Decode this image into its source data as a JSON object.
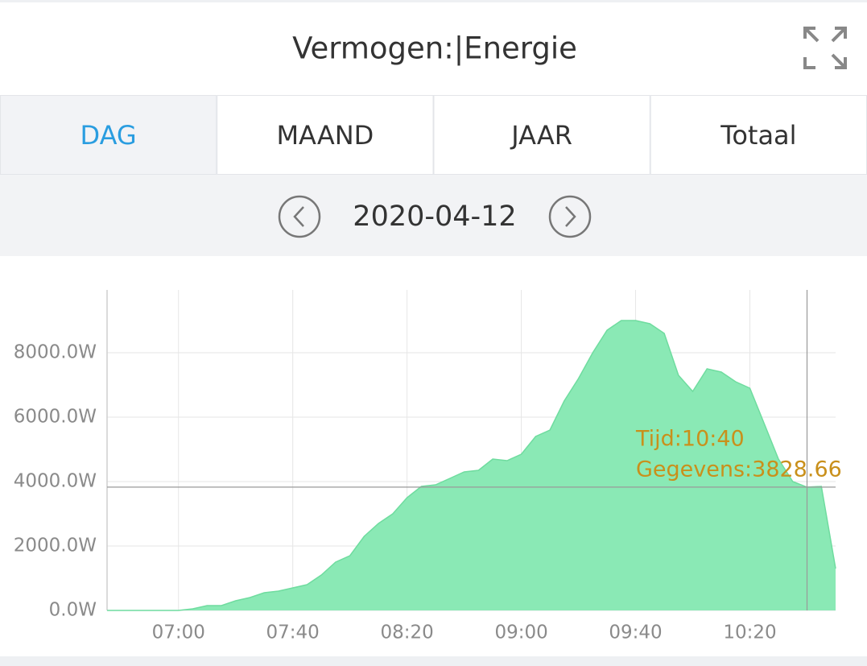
{
  "header": {
    "title": "Vermogen:|Energie"
  },
  "tabs": [
    "DAG",
    "MAAND",
    "JAAR",
    "Totaal"
  ],
  "active_tab": 0,
  "date": "2020-04-12",
  "chart_data": {
    "type": "area",
    "x": [
      "06:35",
      "06:40",
      "06:45",
      "06:50",
      "06:55",
      "07:00",
      "07:05",
      "07:10",
      "07:15",
      "07:20",
      "07:25",
      "07:30",
      "07:35",
      "07:40",
      "07:45",
      "07:50",
      "07:55",
      "08:00",
      "08:05",
      "08:10",
      "08:15",
      "08:20",
      "08:25",
      "08:30",
      "08:35",
      "08:40",
      "08:45",
      "08:50",
      "08:55",
      "09:00",
      "09:05",
      "09:10",
      "09:15",
      "09:20",
      "09:25",
      "09:30",
      "09:35",
      "09:40",
      "09:45",
      "09:50",
      "09:55",
      "10:00",
      "10:05",
      "10:10",
      "10:15",
      "10:20",
      "10:25",
      "10:30",
      "10:35",
      "10:40",
      "10:45",
      "10:50"
    ],
    "values": [
      0,
      0,
      0,
      0,
      0,
      0,
      50,
      150,
      150,
      300,
      400,
      550,
      600,
      700,
      800,
      1100,
      1500,
      1700,
      2300,
      2700,
      3000,
      3500,
      3850,
      3900,
      4100,
      4300,
      4350,
      4700,
      4650,
      4850,
      5400,
      5600,
      6500,
      7200,
      8000,
      8700,
      9000,
      9000,
      8900,
      8600,
      7300,
      6800,
      7500,
      7400,
      7100,
      6900,
      5800,
      4700,
      4000,
      3828.66,
      3850,
      1300
    ],
    "color": "#8ae9b5",
    "line_color": "#6fdc9f",
    "xlim": [
      "06:35",
      "10:50"
    ],
    "xticks": [
      "07:00",
      "07:40",
      "08:20",
      "09:00",
      "09:40",
      "10:20"
    ],
    "ylim": [
      0,
      9950
    ],
    "yticks": [
      {
        "value": 0,
        "label": "0.0W"
      },
      {
        "value": 2000,
        "label": "2000.0W"
      },
      {
        "value": 4000,
        "label": "4000.0W"
      },
      {
        "value": 6000,
        "label": "6000.0W"
      },
      {
        "value": 8000,
        "label": "8000.0W"
      }
    ],
    "grid": true,
    "tooltip": {
      "x": "10:40",
      "value": 3828.66,
      "lines": [
        "Tijd:10:40",
        "Gegevens:3828.66"
      ],
      "color": "#c9901b"
    }
  }
}
